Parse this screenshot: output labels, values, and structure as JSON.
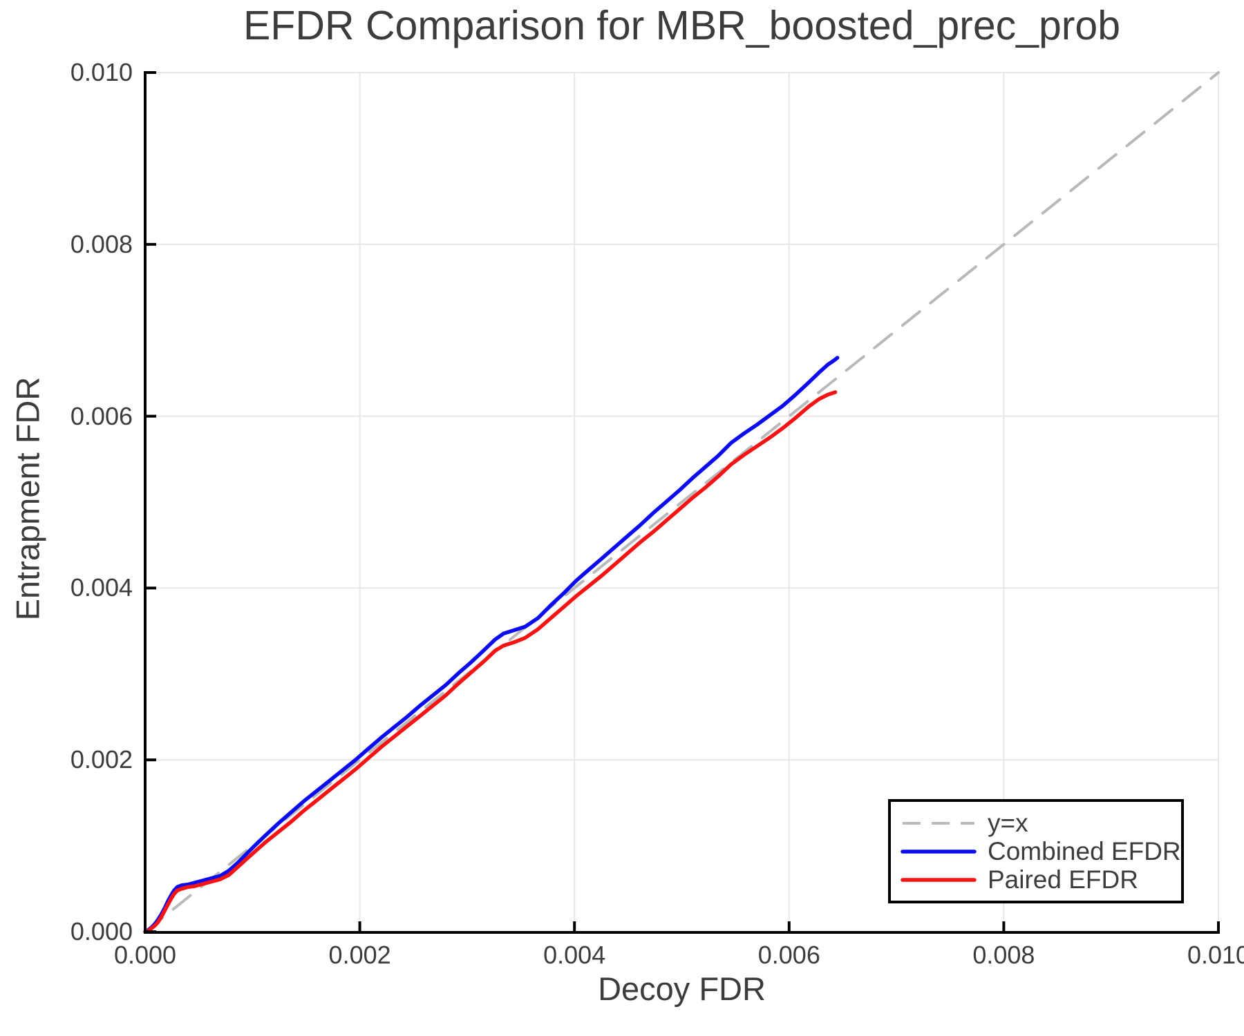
{
  "figure": {
    "background": "#ffffff",
    "text_color": "#3c3c3c",
    "axis_color": "#000000",
    "grid_color": "#e8e8e8"
  },
  "chart_data": {
    "type": "line",
    "title": "EFDR Comparison for MBR_boosted_prec_prob",
    "xlabel": "Decoy FDR",
    "ylabel": "Entrapment FDR",
    "xlim": [
      0.0,
      0.01
    ],
    "ylim": [
      0.0,
      0.01
    ],
    "grid": true,
    "legend_position": "lower right",
    "xticks": {
      "values": [
        0.0,
        0.002,
        0.004,
        0.006,
        0.008,
        0.01
      ],
      "labels": [
        "0.000",
        "0.002",
        "0.004",
        "0.006",
        "0.008",
        "0.010"
      ]
    },
    "yticks": {
      "values": [
        0.0,
        0.002,
        0.004,
        0.006,
        0.008,
        0.01
      ],
      "labels": [
        "0.000",
        "0.002",
        "0.004",
        "0.006",
        "0.008",
        "0.010"
      ]
    },
    "series": [
      {
        "name": "y=x",
        "id": "yx-reference-line",
        "color": "#b9b9b9",
        "style": "dashed",
        "width": 4,
        "points": [
          [
            0.0,
            0.0
          ],
          [
            0.01,
            0.01
          ]
        ]
      },
      {
        "name": "Combined EFDR",
        "id": "combined-efdr-line",
        "color": "#0b0bf0",
        "style": "solid",
        "width": 5.5,
        "points": [
          [
            0.0,
            0.0
          ],
          [
            3e-05,
            2e-05
          ],
          [
            6e-05,
            5e-05
          ],
          [
            9e-05,
            9e-05
          ],
          [
            0.00012,
            0.00014
          ],
          [
            0.00015,
            0.0002
          ],
          [
            0.00018,
            0.00027
          ],
          [
            0.00021,
            0.00035
          ],
          [
            0.00024,
            0.00042
          ],
          [
            0.00027,
            0.00048
          ],
          [
            0.0003,
            0.00052
          ],
          [
            0.00034,
            0.00054
          ],
          [
            0.0004,
            0.00055
          ],
          [
            0.00046,
            0.00057
          ],
          [
            0.00052,
            0.00059
          ],
          [
            0.00058,
            0.00061
          ],
          [
            0.00064,
            0.00063
          ],
          [
            0.0007,
            0.00065
          ],
          [
            0.00078,
            0.00071
          ],
          [
            0.00086,
            0.0008
          ],
          [
            0.00094,
            0.0009
          ],
          [
            0.00102,
            0.001
          ],
          [
            0.00112,
            0.00112
          ],
          [
            0.00124,
            0.00126
          ],
          [
            0.00136,
            0.00139
          ],
          [
            0.00148,
            0.00152
          ],
          [
            0.0016,
            0.00164
          ],
          [
            0.00172,
            0.00176
          ],
          [
            0.00184,
            0.00188
          ],
          [
            0.00196,
            0.002
          ],
          [
            0.00208,
            0.00213
          ],
          [
            0.0022,
            0.00226
          ],
          [
            0.00232,
            0.00238
          ],
          [
            0.00244,
            0.0025
          ],
          [
            0.00256,
            0.00263
          ],
          [
            0.00268,
            0.00275
          ],
          [
            0.0028,
            0.00287
          ],
          [
            0.00292,
            0.00301
          ],
          [
            0.00304,
            0.00314
          ],
          [
            0.00316,
            0.00328
          ],
          [
            0.00326,
            0.0034
          ],
          [
            0.00334,
            0.00347
          ],
          [
            0.00344,
            0.00351
          ],
          [
            0.00354,
            0.00355
          ],
          [
            0.00366,
            0.00365
          ],
          [
            0.00378,
            0.0038
          ],
          [
            0.0039,
            0.00394
          ],
          [
            0.00402,
            0.00409
          ],
          [
            0.00414,
            0.00422
          ],
          [
            0.00426,
            0.00435
          ],
          [
            0.00438,
            0.00448
          ],
          [
            0.0045,
            0.00461
          ],
          [
            0.00462,
            0.00474
          ],
          [
            0.00474,
            0.00488
          ],
          [
            0.00486,
            0.00501
          ],
          [
            0.00498,
            0.00514
          ],
          [
            0.0051,
            0.00528
          ],
          [
            0.00522,
            0.00541
          ],
          [
            0.00534,
            0.00554
          ],
          [
            0.00546,
            0.00569
          ],
          [
            0.00558,
            0.0058
          ],
          [
            0.0057,
            0.0059
          ],
          [
            0.00582,
            0.00601
          ],
          [
            0.00594,
            0.00612
          ],
          [
            0.00606,
            0.00625
          ],
          [
            0.00618,
            0.00639
          ],
          [
            0.00628,
            0.00651
          ],
          [
            0.00636,
            0.0066
          ],
          [
            0.00642,
            0.00665
          ],
          [
            0.00645,
            0.00668
          ]
        ]
      },
      {
        "name": "Paired EFDR",
        "id": "paired-efdr-line",
        "color": "#f51414",
        "style": "solid",
        "width": 5.5,
        "points": [
          [
            0.0,
            0.0
          ],
          [
            3e-05,
            1e-05
          ],
          [
            6e-05,
            4e-05
          ],
          [
            9e-05,
            7e-05
          ],
          [
            0.00012,
            0.00011
          ],
          [
            0.00015,
            0.00017
          ],
          [
            0.00018,
            0.00024
          ],
          [
            0.00021,
            0.00031
          ],
          [
            0.00024,
            0.00038
          ],
          [
            0.00027,
            0.00044
          ],
          [
            0.0003,
            0.00048
          ],
          [
            0.00034,
            0.0005
          ],
          [
            0.0004,
            0.00052
          ],
          [
            0.00046,
            0.00053
          ],
          [
            0.00052,
            0.00055
          ],
          [
            0.00058,
            0.00057
          ],
          [
            0.00064,
            0.00059
          ],
          [
            0.0007,
            0.00061
          ],
          [
            0.00078,
            0.00066
          ],
          [
            0.00086,
            0.00075
          ],
          [
            0.00094,
            0.00084
          ],
          [
            0.00102,
            0.00093
          ],
          [
            0.00112,
            0.00104
          ],
          [
            0.00124,
            0.00116
          ],
          [
            0.00136,
            0.00128
          ],
          [
            0.00148,
            0.00141
          ],
          [
            0.0016,
            0.00153
          ],
          [
            0.00172,
            0.00165
          ],
          [
            0.00184,
            0.00177
          ],
          [
            0.00196,
            0.00189
          ],
          [
            0.00208,
            0.00202
          ],
          [
            0.0022,
            0.00215
          ],
          [
            0.00232,
            0.00227
          ],
          [
            0.00244,
            0.00239
          ],
          [
            0.00256,
            0.00251
          ],
          [
            0.00268,
            0.00263
          ],
          [
            0.0028,
            0.00275
          ],
          [
            0.00292,
            0.00289
          ],
          [
            0.00304,
            0.00302
          ],
          [
            0.00316,
            0.00315
          ],
          [
            0.00326,
            0.00327
          ],
          [
            0.00334,
            0.00333
          ],
          [
            0.00344,
            0.00337
          ],
          [
            0.00354,
            0.00342
          ],
          [
            0.00366,
            0.00352
          ],
          [
            0.00378,
            0.00365
          ],
          [
            0.0039,
            0.00378
          ],
          [
            0.00402,
            0.00391
          ],
          [
            0.00414,
            0.00403
          ],
          [
            0.00426,
            0.00415
          ],
          [
            0.00438,
            0.00428
          ],
          [
            0.0045,
            0.00441
          ],
          [
            0.00462,
            0.00454
          ],
          [
            0.00474,
            0.00466
          ],
          [
            0.00486,
            0.00479
          ],
          [
            0.00498,
            0.00492
          ],
          [
            0.0051,
            0.00505
          ],
          [
            0.00522,
            0.00517
          ],
          [
            0.00534,
            0.0053
          ],
          [
            0.00546,
            0.00544
          ],
          [
            0.00558,
            0.00555
          ],
          [
            0.0057,
            0.00565
          ],
          [
            0.00582,
            0.00575
          ],
          [
            0.00594,
            0.00586
          ],
          [
            0.00606,
            0.00598
          ],
          [
            0.00618,
            0.00611
          ],
          [
            0.00628,
            0.0062
          ],
          [
            0.00636,
            0.00625
          ],
          [
            0.00643,
            0.00628
          ]
        ]
      }
    ]
  }
}
